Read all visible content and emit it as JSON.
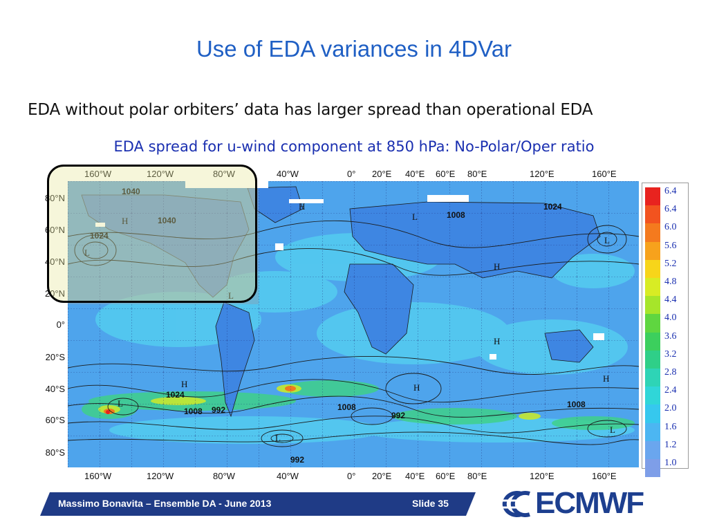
{
  "slide": {
    "title": "Use of EDA variances in 4DVar",
    "subtitle": "EDA without polar orbiters’ data has larger spread than operational EDA",
    "caption": "EDA spread for u-wind component at 850 hPa: No-Polar/Oper ratio"
  },
  "map": {
    "lon_labels": [
      "160°W",
      "120°W",
      "80°W",
      "40°W",
      "0°",
      "20°E",
      "40°E",
      "60°E",
      "80°E",
      "120°E",
      "160°E"
    ],
    "lat_labels": [
      "80°N",
      "60°N",
      "40°N",
      "20°N",
      "0°",
      "20°S",
      "40°S",
      "60°S",
      "80°S"
    ],
    "contour_labels": [
      "1040",
      "1040",
      "1024",
      "1008",
      "1024",
      "1024",
      "1008",
      "992",
      "1008",
      "992",
      "1008",
      "992"
    ],
    "pressure_centers": [
      "H",
      "H",
      "L",
      "H",
      "L",
      "L",
      "H",
      "L",
      "H",
      "H",
      "L",
      "H",
      "L",
      "L"
    ]
  },
  "colorbar": {
    "labels": [
      "6.4",
      "6.4",
      "6.0",
      "5.6",
      "5.2",
      "4.8",
      "4.4",
      "4.0",
      "3.6",
      "3.2",
      "2.8",
      "2.4",
      "2.0",
      "1.6",
      "1.2",
      "1.0"
    ],
    "colors": [
      "#e8231f",
      "#f2531f",
      "#f47a1e",
      "#f7a21c",
      "#f7d51a",
      "#d8ec24",
      "#a6e52a",
      "#5fd640",
      "#3ccf5d",
      "#2fcf88",
      "#2ed4b6",
      "#30d6d8",
      "#36c8ee",
      "#4cb6f2",
      "#6aa6ee",
      "#7e9ee8"
    ]
  },
  "footer": {
    "text": "Massimo Bonavita –  Ensemble DA - June 2013",
    "slide_label": "Slide 35",
    "logo_text": "ECMWF"
  }
}
